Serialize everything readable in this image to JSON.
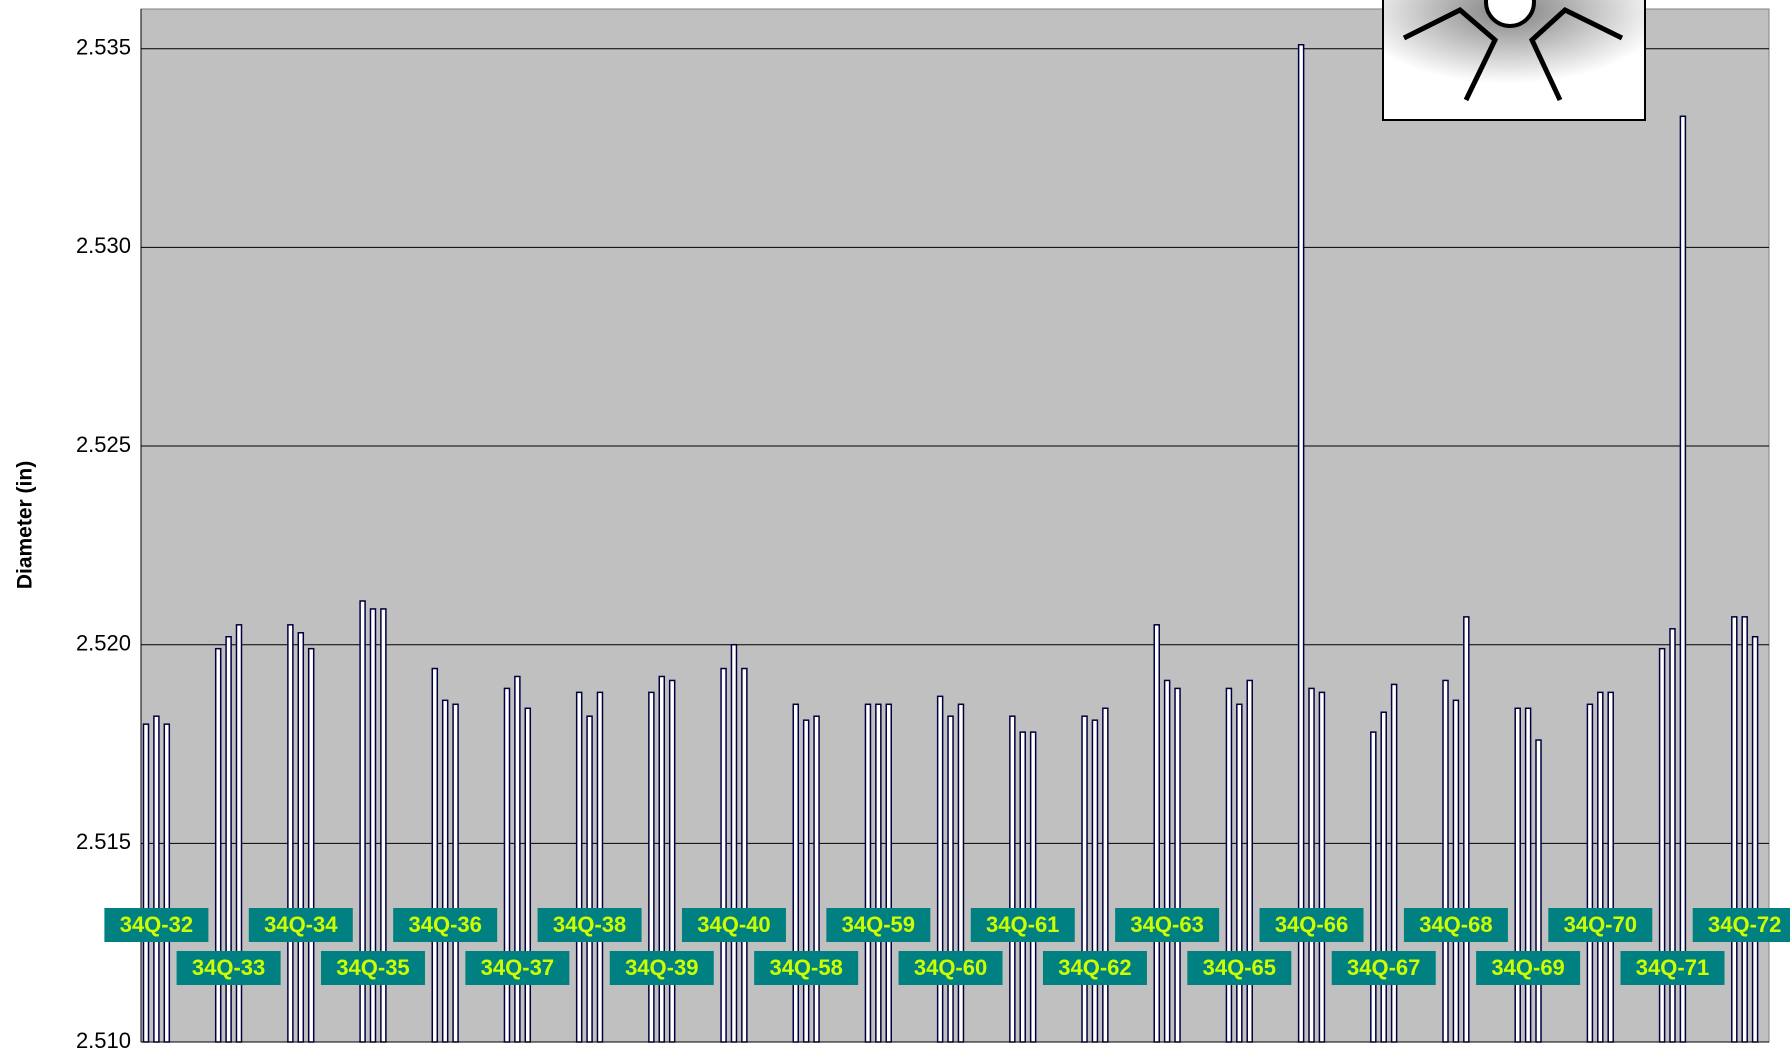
{
  "chart_data": {
    "type": "bar",
    "y_label": "Diameter (in)",
    "ylim": [
      2.51,
      2.536
    ],
    "yticks": [
      {
        "value": 2.51,
        "label": "2.510"
      },
      {
        "value": 2.515,
        "label": "2.515"
      },
      {
        "value": 2.52,
        "label": "2.520"
      },
      {
        "value": 2.525,
        "label": "2.525"
      },
      {
        "value": 2.53,
        "label": "2.530"
      },
      {
        "value": 2.535,
        "label": "2.535"
      }
    ],
    "grid": true,
    "color": "#ffffff",
    "edge_color": "#000040",
    "label_background": "#008080",
    "groups": [
      {
        "label": "34Q-32",
        "values": [
          2.518,
          2.5182,
          2.518
        ]
      },
      {
        "label": "34Q-33",
        "values": [
          2.5199,
          2.5202,
          2.5205
        ]
      },
      {
        "label": "34Q-34",
        "values": [
          2.5205,
          2.5203,
          2.5199
        ]
      },
      {
        "label": "34Q-35",
        "values": [
          2.5211,
          2.5209,
          2.5209
        ]
      },
      {
        "label": "34Q-36",
        "values": [
          2.5194,
          2.5186,
          2.5185
        ]
      },
      {
        "label": "34Q-37",
        "values": [
          2.5189,
          2.5192,
          2.5184
        ]
      },
      {
        "label": "34Q-38",
        "values": [
          2.5188,
          2.5182,
          2.5188
        ]
      },
      {
        "label": "34Q-39",
        "values": [
          2.5188,
          2.5192,
          2.5191
        ]
      },
      {
        "label": "34Q-40",
        "values": [
          2.5194,
          2.52,
          2.5194
        ]
      },
      {
        "label": "34Q-58",
        "values": [
          2.5185,
          2.5181,
          2.5182
        ]
      },
      {
        "label": "34Q-59",
        "values": [
          2.5185,
          2.5185,
          2.5185
        ]
      },
      {
        "label": "34Q-60",
        "values": [
          2.5187,
          2.5182,
          2.5185
        ]
      },
      {
        "label": "34Q-61",
        "values": [
          2.5182,
          2.5178,
          2.5178
        ]
      },
      {
        "label": "34Q-62",
        "values": [
          2.5182,
          2.5181,
          2.5184
        ]
      },
      {
        "label": "34Q-63",
        "values": [
          2.5205,
          2.5191,
          2.5189
        ]
      },
      {
        "label": "34Q-65",
        "values": [
          2.5189,
          2.5185,
          2.5191
        ]
      },
      {
        "label": "34Q-66",
        "values": [
          2.5351,
          2.5189,
          2.5188
        ]
      },
      {
        "label": "34Q-67",
        "values": [
          2.5178,
          2.5183,
          2.519
        ]
      },
      {
        "label": "34Q-68",
        "values": [
          2.5191,
          2.5186,
          2.5207
        ]
      },
      {
        "label": "34Q-69",
        "values": [
          2.5184,
          2.5184,
          2.5176
        ]
      },
      {
        "label": "34Q-70",
        "values": [
          2.5185,
          2.5188,
          2.5188
        ]
      },
      {
        "label": "34Q-71",
        "values": [
          2.5199,
          2.5204,
          2.5333
        ]
      },
      {
        "label": "34Q-72",
        "values": [
          2.5207,
          2.5207,
          2.5202
        ]
      }
    ]
  }
}
